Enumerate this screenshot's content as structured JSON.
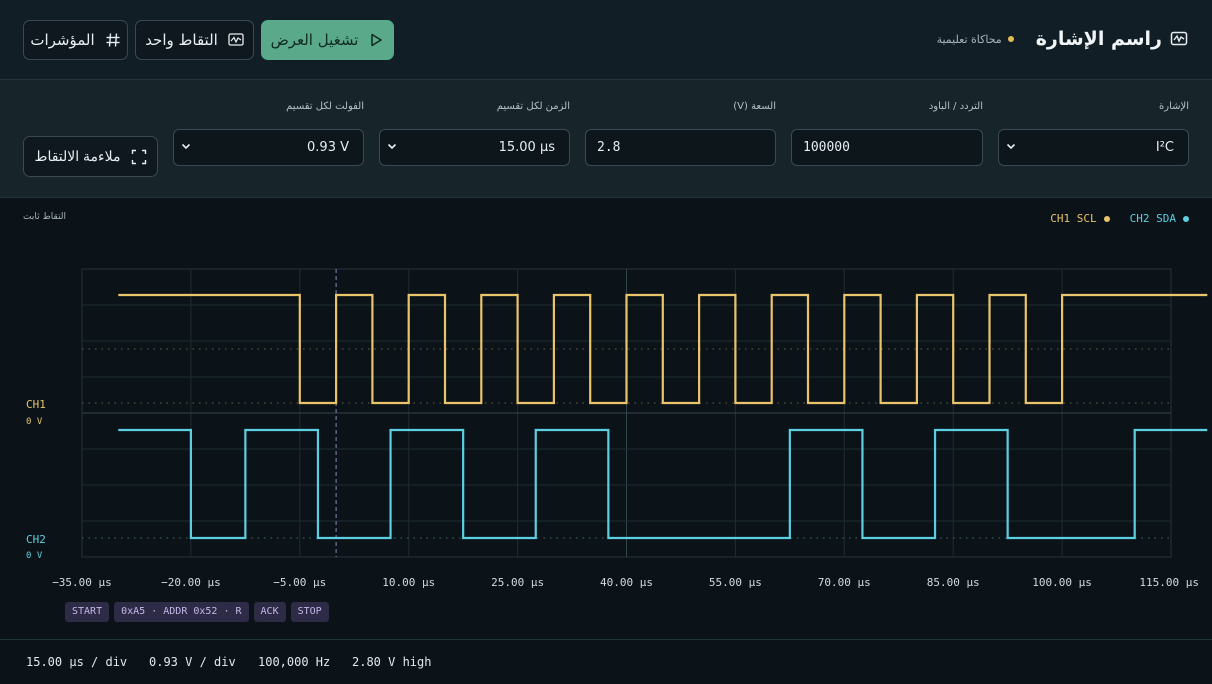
{
  "header": {
    "title": "راسم الإشارة",
    "subtitle": "محاكاة تعليمية",
    "buttons": {
      "run": "تشغيل العرض",
      "single": "التقاط واحد",
      "cursors": "المؤشرات"
    }
  },
  "controls": {
    "signal": {
      "label": "الإشارة",
      "value": "I²C"
    },
    "frequency": {
      "label": "التردد / الباود",
      "value": "100000"
    },
    "amplitude": {
      "label": "السعة (V)",
      "value": "2.8"
    },
    "time_div": {
      "label": "الزمن لكل تقسيم",
      "value": "15.00 µs"
    },
    "volt_div": {
      "label": "الفولت لكل تقسيم",
      "value": "0.93 V"
    },
    "fit_button": "ملاءمة الالتقاط"
  },
  "scope": {
    "capture_state": "التقاط ثابت",
    "channels": [
      {
        "name": "CH1 SCL",
        "label": "CH1",
        "offset": "0 V",
        "color": "#e9c46a"
      },
      {
        "name": "CH2 SDA",
        "label": "CH2",
        "offset": "0 V",
        "color": "#5ccfe0"
      }
    ],
    "x_ticks": [
      "−35.00 µs",
      "−20.00 µs",
      "−5.00 µs",
      "10.00 µs",
      "25.00 µs",
      "40.00 µs",
      "55.00 µs",
      "70.00 µs",
      "85.00 µs",
      "100.00 µs",
      "115.00 µs"
    ],
    "trigger_time_us": 0,
    "ch1_transitions_us": [
      -30,
      -5,
      0,
      5,
      10,
      15,
      20,
      25,
      30,
      35,
      40,
      45,
      50,
      55,
      60,
      65,
      70,
      75,
      80,
      85,
      90,
      95,
      100,
      120
    ],
    "ch1_initial": 1,
    "ch2_transitions_us": [
      -30,
      -20,
      -12.5,
      -2.5,
      7.5,
      17.5,
      27.5,
      37.5,
      62.5,
      72.5,
      82.5,
      92.5,
      110,
      120
    ],
    "ch2_initial": 1
  },
  "chart_data": {
    "type": "line",
    "xlabel": "",
    "ylabel": "",
    "xlim": [
      -35,
      115
    ],
    "series": [
      {
        "name": "CH1 SCL",
        "x": [
          -30,
          -5,
          -5,
          0,
          0,
          5,
          5,
          10,
          10,
          15,
          15,
          20,
          20,
          25,
          25,
          30,
          30,
          35,
          35,
          40,
          40,
          45,
          45,
          50,
          50,
          55,
          55,
          60,
          60,
          65,
          65,
          70,
          70,
          75,
          75,
          80,
          80,
          85,
          85,
          90,
          90,
          95,
          95,
          120
        ],
        "y": [
          1,
          1,
          0,
          0,
          1,
          1,
          0,
          0,
          1,
          1,
          0,
          0,
          1,
          1,
          0,
          0,
          1,
          1,
          0,
          0,
          1,
          1,
          0,
          0,
          1,
          1,
          0,
          0,
          1,
          1,
          0,
          0,
          1,
          1,
          0,
          0,
          1,
          1,
          0,
          0,
          1,
          1,
          0,
          1
        ]
      },
      {
        "name": "CH2 SDA",
        "x": [
          -30,
          -20,
          -20,
          -12.5,
          -12.5,
          -2.5,
          -2.5,
          7.5,
          7.5,
          17.5,
          17.5,
          27.5,
          27.5,
          37.5,
          37.5,
          62.5,
          62.5,
          72.5,
          72.5,
          82.5,
          82.5,
          92.5,
          92.5,
          110,
          110,
          120
        ],
        "y": [
          1,
          1,
          0,
          0,
          1,
          1,
          0,
          0,
          1,
          1,
          0,
          0,
          1,
          1,
          0,
          0,
          1,
          1,
          0,
          0,
          1,
          1,
          0,
          0,
          1,
          1
        ]
      }
    ]
  },
  "decode": [
    "START",
    "0xA5 · ADDR 0x52 · R",
    "ACK",
    "STOP"
  ],
  "status": {
    "time_div": "15.00 µs / div",
    "volt_div": "0.93 V / div",
    "freq": "100,000 Hz",
    "high": "2.80 V high"
  }
}
